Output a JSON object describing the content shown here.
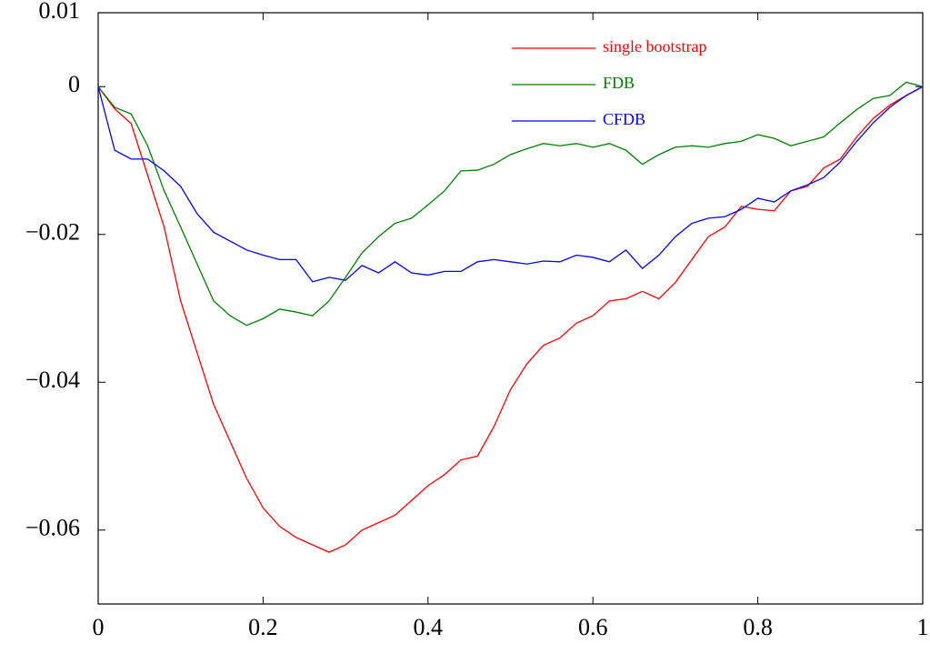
{
  "chart_data": {
    "type": "line",
    "x": [
      0,
      0.02,
      0.04,
      0.06,
      0.08,
      0.1,
      0.12,
      0.14,
      0.16,
      0.18,
      0.2,
      0.22,
      0.24,
      0.26,
      0.28,
      0.3,
      0.32,
      0.34,
      0.36,
      0.38,
      0.4,
      0.42,
      0.44,
      0.46,
      0.48,
      0.5,
      0.52,
      0.54,
      0.56,
      0.58,
      0.6,
      0.62,
      0.64,
      0.66,
      0.68,
      0.7,
      0.72,
      0.74,
      0.76,
      0.78,
      0.8,
      0.82,
      0.84,
      0.86,
      0.88,
      0.9,
      0.92,
      0.94,
      0.96,
      0.98,
      1
    ],
    "series": [
      {
        "name": "single bootstrap",
        "color": "#ff0000",
        "values": [
          0,
          -0.003,
          -0.005,
          -0.012,
          -0.019,
          -0.029,
          -0.036,
          -0.043,
          -0.048,
          -0.053,
          -0.057,
          -0.0595,
          -0.061,
          -0.062,
          -0.063,
          -0.062,
          -0.06,
          -0.059,
          -0.058,
          -0.056,
          -0.054,
          -0.0525,
          -0.0505,
          -0.05,
          -0.046,
          -0.041,
          -0.0375,
          -0.035,
          -0.034,
          -0.032,
          -0.031,
          -0.029,
          -0.0287,
          -0.0277,
          -0.0287,
          -0.0265,
          -0.0234,
          -0.0203,
          -0.019,
          -0.0162,
          -0.0166,
          -0.0168,
          -0.0141,
          -0.0135,
          -0.011,
          -0.0098,
          -0.0068,
          -0.0043,
          -0.0025,
          -0.0012,
          0
        ]
      },
      {
        "name": "FDB",
        "color": "#008000",
        "values": [
          0,
          -0.0028,
          -0.0037,
          -0.008,
          -0.0141,
          -0.019,
          -0.024,
          -0.029,
          -0.031,
          -0.0323,
          -0.0314,
          -0.0301,
          -0.0305,
          -0.031,
          -0.029,
          -0.0258,
          -0.0225,
          -0.0203,
          -0.0185,
          -0.0178,
          -0.016,
          -0.0141,
          -0.0114,
          -0.0113,
          -0.0105,
          -0.0092,
          -0.0084,
          -0.0077,
          -0.008,
          -0.0077,
          -0.0082,
          -0.0077,
          -0.0086,
          -0.0105,
          -0.0092,
          -0.0082,
          -0.008,
          -0.0082,
          -0.0077,
          -0.0074,
          -0.0065,
          -0.007,
          -0.008,
          -0.0074,
          -0.0068,
          -0.0049,
          -0.0031,
          -0.0016,
          -0.0012,
          0.0006,
          0
        ]
      },
      {
        "name": "CFDB",
        "color": "#0000ff",
        "values": [
          0,
          -0.0086,
          -0.0098,
          -0.0098,
          -0.0114,
          -0.0135,
          -0.0172,
          -0.0197,
          -0.0209,
          -0.0221,
          -0.0228,
          -0.0234,
          -0.0234,
          -0.0264,
          -0.0258,
          -0.0262,
          -0.0242,
          -0.0252,
          -0.0237,
          -0.0252,
          -0.0255,
          -0.025,
          -0.025,
          -0.0237,
          -0.0234,
          -0.0237,
          -0.024,
          -0.0236,
          -0.0237,
          -0.0228,
          -0.0231,
          -0.0237,
          -0.0221,
          -0.0246,
          -0.0228,
          -0.0203,
          -0.0185,
          -0.0178,
          -0.0176,
          -0.0166,
          -0.0151,
          -0.0156,
          -0.0141,
          -0.0133,
          -0.0123,
          -0.0102,
          -0.0074,
          -0.0049,
          -0.0028,
          -0.0012,
          0
        ]
      }
    ],
    "xlim": [
      0,
      1
    ],
    "xticks": [
      0,
      0.2,
      0.4,
      0.6,
      0.8,
      1
    ],
    "ylim": [
      -0.07,
      0.01
    ],
    "yticks": [
      0.01,
      0,
      {
        "value": -0.02,
        "label": "−0.02"
      },
      {
        "value": -0.04,
        "label": "−0.04"
      },
      {
        "value": -0.06,
        "label": "−0.06"
      }
    ],
    "legend": "upper right",
    "grid": false
  }
}
